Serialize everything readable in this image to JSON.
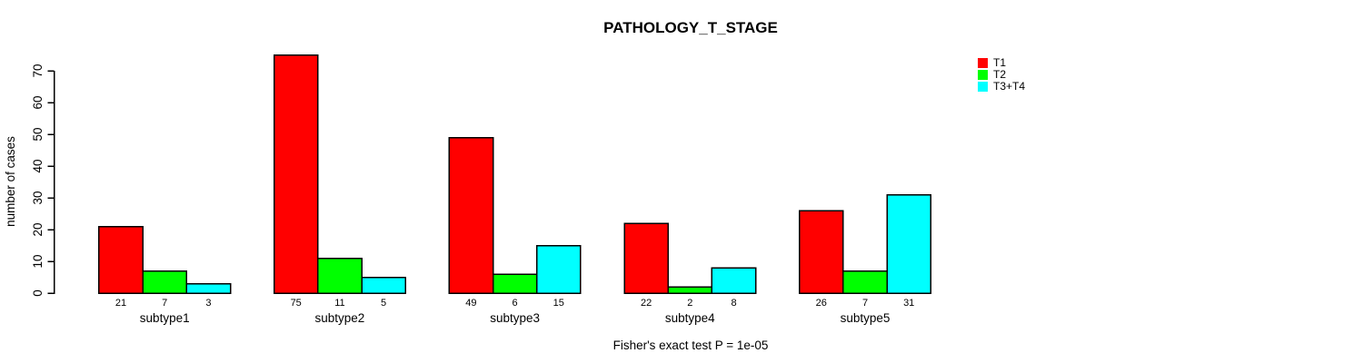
{
  "title": "PATHOLOGY_T_STAGE",
  "footnote": "Fisher's exact test P = 1e-05",
  "chart_data": {
    "type": "bar",
    "grouped": true,
    "title": "PATHOLOGY_T_STAGE",
    "xlabel": "",
    "ylabel": "number of cases",
    "categories": [
      "subtype1",
      "subtype2",
      "subtype3",
      "subtype4",
      "subtype5"
    ],
    "series": [
      {
        "name": "T1",
        "color": "#FF0000",
        "values": [
          21,
          75,
          49,
          22,
          26
        ]
      },
      {
        "name": "T2",
        "color": "#00FF00",
        "values": [
          7,
          11,
          6,
          2,
          7
        ]
      },
      {
        "name": "T3+T4",
        "color": "#00FFFF",
        "values": [
          3,
          5,
          15,
          8,
          31
        ]
      }
    ],
    "bar_value_labels": [
      [
        "21",
        "7",
        "3"
      ],
      [
        "75",
        "11",
        "5"
      ],
      [
        "49",
        "6",
        "15"
      ],
      [
        "22",
        "2",
        "8"
      ],
      [
        "26",
        "7",
        "31"
      ]
    ],
    "ylim": [
      0,
      70
    ],
    "yticks": [
      0,
      10,
      20,
      30,
      40,
      50,
      60,
      70
    ],
    "grid": false,
    "bar_border_color": "#000000",
    "legend_position": "top-right",
    "footnote": "Fisher's exact test P = 1e-05"
  }
}
